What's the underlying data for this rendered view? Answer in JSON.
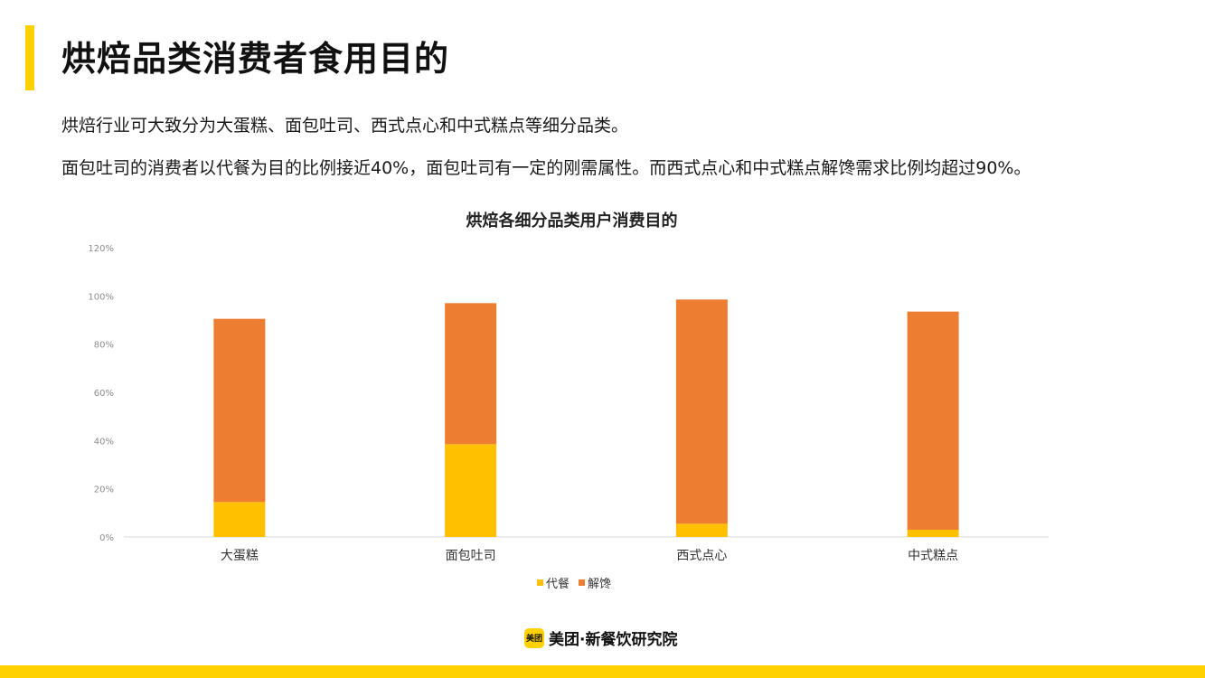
{
  "page": {
    "title": "烘焙品类消费者食用目的",
    "paragraphs": [
      "烘焙行业可大致分为大蛋糕、面包吐司、西式点心和中式糕点等细分品类。",
      "面包吐司的消费者以代餐为目的比例接近40%，面包吐司有一定的刚需属性。而西式点心和中式糕点解馋需求比例均超过90%。"
    ],
    "brand": {
      "logo_text": "美团",
      "name": "美团·新餐饮研究院"
    }
  },
  "colors": {
    "accent": "#FFD100",
    "series_meal": "#FFC000",
    "series_craving": "#ED7D31",
    "axis": "#D9D9D9"
  },
  "chart_data": {
    "type": "bar",
    "stacked": true,
    "title": "烘焙各细分品类用户消费目的",
    "categories": [
      "大蛋糕",
      "面包吐司",
      "西式点心",
      "中式糕点"
    ],
    "series": [
      {
        "name": "代餐",
        "values": [
          14.5,
          38.5,
          5.5,
          3.0
        ]
      },
      {
        "name": "解馋",
        "values": [
          76.0,
          58.5,
          93.0,
          90.5
        ]
      }
    ],
    "xlabel": "",
    "ylabel": "",
    "ylim": [
      0,
      120
    ],
    "yticks": [
      "0%",
      "20%",
      "40%",
      "60%",
      "80%",
      "100%",
      "120%"
    ],
    "grid": false,
    "legend_position": "bottom"
  }
}
